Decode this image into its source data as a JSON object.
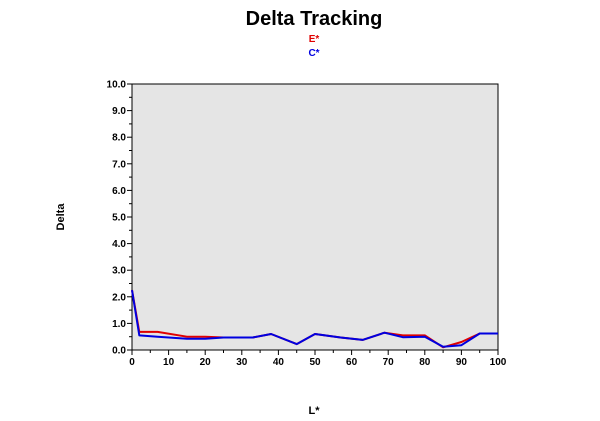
{
  "chart_data": {
    "type": "line",
    "title": "Delta Tracking",
    "xlabel": "L*",
    "ylabel": "Delta",
    "xlim": [
      0,
      100
    ],
    "ylim": [
      0,
      10
    ],
    "x_ticks": [
      "0",
      "10",
      "20",
      "30",
      "40",
      "50",
      "60",
      "70",
      "80",
      "90",
      "100"
    ],
    "y_ticks": [
      "0.0",
      "1.0",
      "2.0",
      "3.0",
      "4.0",
      "5.0",
      "6.0",
      "7.0",
      "8.0",
      "9.0",
      "10.0"
    ],
    "grid": false,
    "legend": "top-center",
    "series": [
      {
        "name": "E*",
        "color": "#e00000",
        "x": [
          0,
          2,
          7,
          15,
          20,
          25,
          33,
          38,
          45,
          50,
          57,
          63,
          69,
          74,
          80,
          85,
          90,
          95,
          100
        ],
        "y": [
          2.25,
          0.68,
          0.68,
          0.5,
          0.5,
          0.47,
          0.47,
          0.6,
          0.22,
          0.6,
          0.47,
          0.38,
          0.65,
          0.55,
          0.55,
          0.1,
          0.3,
          0.62,
          0.62
        ]
      },
      {
        "name": "C*",
        "color": "#0000e0",
        "x": [
          0,
          2,
          7,
          15,
          20,
          25,
          33,
          38,
          45,
          50,
          57,
          63,
          69,
          74,
          80,
          85,
          90,
          95,
          100
        ],
        "y": [
          2.25,
          0.55,
          0.5,
          0.42,
          0.42,
          0.47,
          0.47,
          0.6,
          0.22,
          0.6,
          0.47,
          0.38,
          0.65,
          0.48,
          0.5,
          0.12,
          0.18,
          0.62,
          0.62
        ]
      }
    ]
  }
}
